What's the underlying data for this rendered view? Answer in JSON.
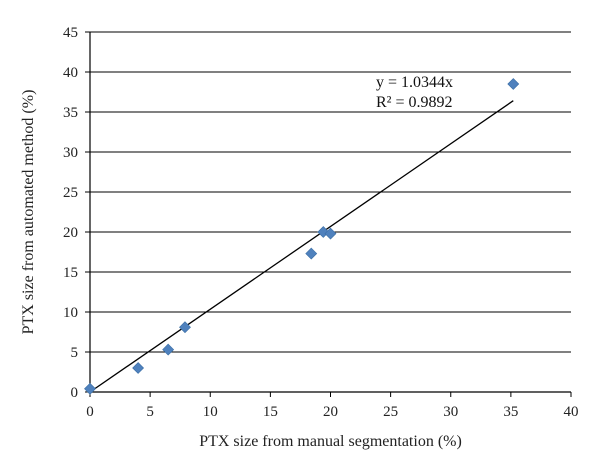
{
  "chart_data": {
    "type": "scatter",
    "title": "",
    "xlabel": "PTX size from manual segmentation (%)",
    "ylabel": "PTX size from automated method (%)",
    "xlim": [
      0,
      40
    ],
    "ylim": [
      0,
      45
    ],
    "xticks": [
      0,
      5,
      10,
      15,
      20,
      25,
      30,
      35,
      40
    ],
    "yticks": [
      0,
      5,
      10,
      15,
      20,
      25,
      30,
      35,
      40,
      45
    ],
    "grid": "horizontal",
    "legend": "none",
    "series": [
      {
        "x": [
          0,
          4.0,
          6.5,
          7.9,
          18.4,
          19.4,
          20.0,
          35.2
        ],
        "y": [
          0.4,
          3.0,
          5.3,
          8.1,
          17.3,
          20.0,
          19.8,
          38.5
        ],
        "marker": "diamond",
        "color": "#4f81bd"
      }
    ],
    "trendline": {
      "slope": 1.0344,
      "x_range": [
        0,
        35.2
      ],
      "equation_label": "y = 1.0344x",
      "r2_label": "R² = 0.9892",
      "color": "#000000"
    }
  }
}
